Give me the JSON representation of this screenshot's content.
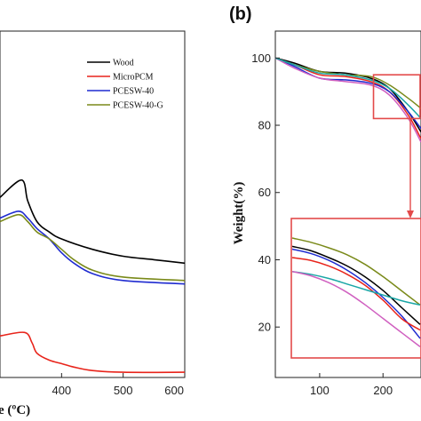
{
  "chart_data": [
    {
      "type": "line",
      "panel_label": "",
      "xlabel": "e (ºC)",
      "ylabel": "",
      "xlim": [
        300,
        600
      ],
      "ylim": [
        0,
        100
      ],
      "xticks": [
        "400",
        "500",
        "600"
      ],
      "legend_position": "top-right",
      "series": [
        {
          "name": "Wood",
          "color": "#000000",
          "x": [
            300,
            335,
            345,
            360,
            380,
            400,
            450,
            500,
            550,
            600
          ],
          "y": [
            52,
            57,
            51,
            45,
            42,
            40,
            37,
            35,
            34,
            33
          ]
        },
        {
          "name": "MicroPCM",
          "color": "#e8241b",
          "x": [
            300,
            340,
            352,
            360,
            380,
            400,
            420,
            450,
            500,
            600
          ],
          "y": [
            12,
            13,
            10,
            7,
            5,
            4,
            3,
            2,
            1.5,
            1.5
          ]
        },
        {
          "name": "PCESW-40",
          "color": "#1f2bd0",
          "x": [
            300,
            330,
            345,
            360,
            380,
            400,
            420,
            450,
            500,
            600
          ],
          "y": [
            46,
            48,
            46,
            43,
            40,
            36,
            33,
            30,
            28,
            27
          ]
        },
        {
          "name": "PCESW-40-G",
          "color": "#7a8a1a",
          "x": [
            300,
            330,
            345,
            360,
            380,
            400,
            420,
            450,
            500,
            600
          ],
          "y": [
            45,
            47,
            45,
            42,
            40,
            37,
            34,
            31,
            29,
            28
          ]
        }
      ]
    },
    {
      "type": "line",
      "panel_label": "(b)",
      "xlabel": "",
      "ylabel": "Weight(%)",
      "xlim": [
        30,
        260
      ],
      "ylim": [
        5,
        108
      ],
      "yticks": [
        "20",
        "40",
        "60",
        "80",
        "100"
      ],
      "xticks": [
        "100",
        "200"
      ],
      "series": [
        {
          "name": "",
          "color": "#000000",
          "x": [
            30,
            60,
            100,
            140,
            180,
            210,
            240,
            260
          ],
          "y": [
            100,
            98.5,
            96,
            95.5,
            94,
            91,
            84,
            78
          ]
        },
        {
          "name": "",
          "color": "#e8241b",
          "x": [
            30,
            60,
            100,
            140,
            180,
            210,
            240,
            260
          ],
          "y": [
            100,
            98,
            95,
            94.5,
            93,
            90,
            83,
            76
          ]
        },
        {
          "name": "",
          "color": "#1f2bd0",
          "x": [
            30,
            60,
            100,
            140,
            180,
            210,
            240,
            260
          ],
          "y": [
            100,
            97.5,
            94,
            93.5,
            92.5,
            90,
            84,
            79
          ]
        },
        {
          "name": "",
          "color": "#7a8a1a",
          "x": [
            30,
            60,
            100,
            140,
            180,
            210,
            240,
            260
          ],
          "y": [
            100,
            98,
            96,
            95,
            94.5,
            92,
            88,
            85
          ]
        },
        {
          "name": "",
          "color": "#d060c0",
          "x": [
            30,
            60,
            100,
            140,
            180,
            210,
            240,
            260
          ],
          "y": [
            100,
            97,
            94,
            93,
            92,
            89,
            82,
            75
          ]
        },
        {
          "name": "",
          "color": "#1aa6a6",
          "x": [
            30,
            60,
            100,
            140,
            180,
            210,
            240,
            260
          ],
          "y": [
            100,
            98,
            95.5,
            95,
            93.5,
            91,
            86,
            82
          ]
        }
      ],
      "zoom_box": {
        "x0": 185,
        "x1": 260,
        "y0": 82,
        "y1": 95
      },
      "inset_series": [
        {
          "color": "#7a8a1a",
          "y": [
            48,
            46.5,
            44.5,
            42,
            38.5,
            34,
            29,
            24
          ]
        },
        {
          "color": "#000000",
          "y": [
            45,
            43.5,
            41,
            38,
            34,
            29,
            23,
            17
          ]
        },
        {
          "color": "#1f2bd0",
          "y": [
            44,
            42.5,
            40,
            36.5,
            32,
            26.5,
            20,
            12
          ]
        },
        {
          "color": "#e8241b",
          "y": [
            41,
            40,
            38,
            35,
            31,
            25.5,
            19,
            15
          ]
        },
        {
          "color": "#1aa6a6",
          "y": [
            36,
            35,
            33.5,
            31.5,
            29.5,
            27.5,
            25.5,
            24
          ]
        },
        {
          "color": "#d060c0",
          "y": [
            36,
            34.5,
            32,
            28.5,
            24,
            19,
            14,
            9
          ]
        }
      ]
    }
  ]
}
